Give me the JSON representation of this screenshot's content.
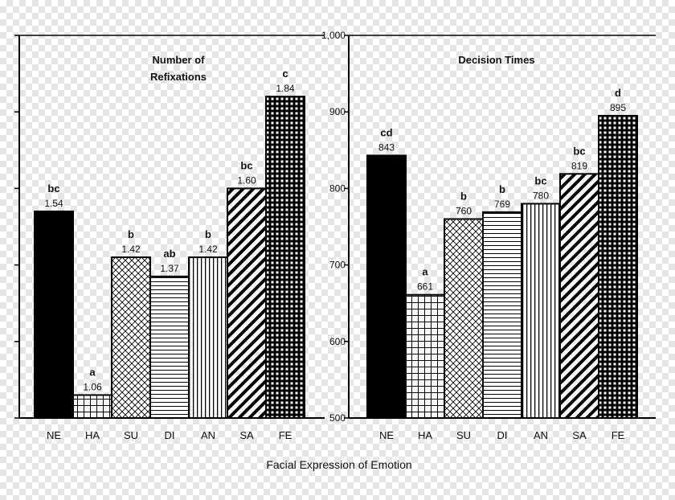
{
  "colors": {
    "ink": "#000000",
    "paper": "#ffffff",
    "checker": "#e6e6e6"
  },
  "chart_data": [
    {
      "type": "bar",
      "title": "Number of Refixations",
      "title_lines": [
        "Number of",
        "Refixations"
      ],
      "categories": [
        "NE",
        "HA",
        "SU",
        "DI",
        "AN",
        "SA",
        "FE"
      ],
      "values": [
        1.54,
        1.06,
        1.42,
        1.37,
        1.42,
        1.6,
        1.84
      ],
      "value_labels": [
        "1.54",
        "1.06",
        "1.42",
        "1.37",
        "1.42",
        "1.60",
        "1.84"
      ],
      "letters": [
        "bc",
        "a",
        "b",
        "ab",
        "b",
        "bc",
        "c"
      ],
      "patterns": [
        "solid",
        "grid-wide",
        "crosshatch",
        "horizontal",
        "vertical",
        "diagonal",
        "grid-dense"
      ],
      "ylim": [
        1.0,
        2.0
      ],
      "y_tick_labels": [],
      "grid": false
    },
    {
      "type": "bar",
      "title": "Decision Times",
      "categories": [
        "NE",
        "HA",
        "SU",
        "DI",
        "AN",
        "SA",
        "FE"
      ],
      "values": [
        843,
        661,
        760,
        769,
        780,
        819,
        895
      ],
      "value_labels": [
        "843",
        "661",
        "760",
        "769",
        "780",
        "819",
        "895"
      ],
      "letters": [
        "cd",
        "a",
        "b",
        "b",
        "bc",
        "bc",
        "d"
      ],
      "patterns": [
        "solid",
        "grid-wide",
        "crosshatch",
        "horizontal",
        "vertical",
        "diagonal",
        "grid-dense"
      ],
      "ylim": [
        500,
        1000
      ],
      "y_ticks": [
        500,
        600,
        700,
        800,
        900,
        1000
      ],
      "y_tick_labels": [
        "500",
        "600",
        "700",
        "800",
        "900",
        "1,000"
      ],
      "grid": false
    }
  ],
  "xlabel": "Facial Expression of Emotion"
}
